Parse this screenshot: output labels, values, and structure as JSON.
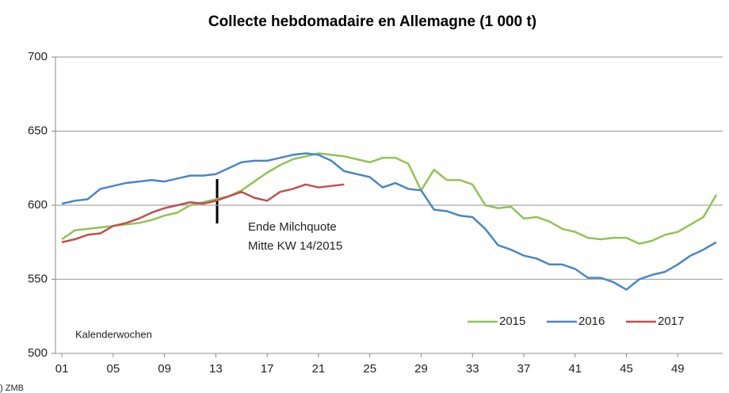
{
  "chart_data": {
    "type": "line",
    "title": "Collecte hebdomadaire en Allemagne (1 000 t)",
    "x_label": "Kalenderwochen",
    "source": ") ZMB",
    "annotation": [
      "Ende Milchquote",
      "Mitte KW 14/2015"
    ],
    "x": [
      1,
      2,
      3,
      4,
      5,
      6,
      7,
      8,
      9,
      10,
      11,
      12,
      13,
      14,
      15,
      16,
      17,
      18,
      19,
      20,
      21,
      22,
      23,
      24,
      25,
      26,
      27,
      28,
      29,
      30,
      31,
      32,
      33,
      34,
      35,
      36,
      37,
      38,
      39,
      40,
      41,
      42,
      43,
      44,
      45,
      46,
      47,
      48,
      49,
      50,
      51,
      52
    ],
    "series": [
      {
        "name": "2015",
        "color": "#92c353",
        "values": [
          577,
          583,
          584,
          585,
          586,
          587,
          588,
          590,
          593,
          595,
          600,
          602,
          604,
          606,
          610,
          616,
          622,
          627,
          631,
          633,
          635,
          634,
          633,
          631,
          629,
          632,
          632,
          628,
          610,
          624,
          617,
          617,
          614,
          600,
          598,
          599,
          591,
          592,
          589,
          584,
          582,
          578,
          577,
          578,
          578,
          574,
          576,
          580,
          582,
          587,
          592,
          607
        ]
      },
      {
        "name": "2016",
        "color": "#4a86c8",
        "values": [
          601,
          603,
          604,
          611,
          613,
          615,
          616,
          617,
          616,
          618,
          620,
          620,
          621,
          625,
          629,
          630,
          630,
          632,
          634,
          635,
          634,
          630,
          623,
          621,
          619,
          612,
          615,
          611,
          610,
          597,
          596,
          593,
          592,
          584,
          573,
          570,
          566,
          564,
          560,
          560,
          557,
          551,
          551,
          548,
          543,
          550,
          553,
          555,
          560,
          566,
          570,
          575
        ]
      },
      {
        "name": "2017",
        "color": "#c0504d",
        "values": [
          575,
          577,
          580,
          581,
          586,
          588,
          591,
          595,
          598,
          600,
          602,
          601,
          603,
          606,
          609,
          605,
          603,
          609,
          611,
          614,
          612,
          613,
          614,
          null,
          null,
          null,
          null,
          null,
          null,
          null,
          null,
          null,
          null,
          null,
          null,
          null,
          null,
          null,
          null,
          null,
          null,
          null,
          null,
          null,
          null,
          null,
          null,
          null,
          null,
          null,
          null,
          null
        ]
      }
    ],
    "xlim": [
      0.5,
      52.5
    ],
    "xticks": [
      {
        "value": 1,
        "label": "01"
      },
      {
        "value": 5,
        "label": "05"
      },
      {
        "value": 9,
        "label": "09"
      },
      13,
      17,
      21,
      25,
      29,
      33,
      37,
      41,
      45,
      49
    ],
    "ylim": [
      500,
      700
    ],
    "yticks": [
      500,
      550,
      600,
      650,
      700
    ],
    "grid": true,
    "legend": "lower right"
  }
}
